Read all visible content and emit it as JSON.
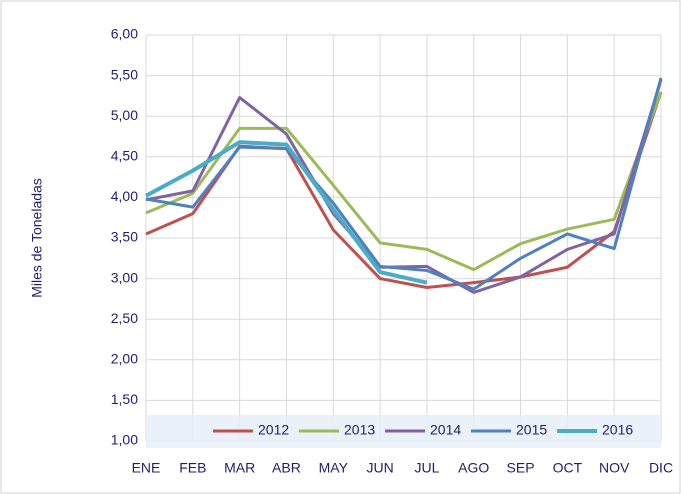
{
  "chart_data": {
    "type": "line",
    "y_label": "Miles de Toneladas",
    "categories": [
      "ENE",
      "FEB",
      "MAR",
      "ABR",
      "MAY",
      "JUN",
      "JUL",
      "AGO",
      "SEP",
      "OCT",
      "NOV",
      "DIC"
    ],
    "series": [
      {
        "name": "2012",
        "color": "#c0504d",
        "values": [
          3.55,
          3.8,
          4.63,
          4.6,
          3.6,
          3.0,
          2.89,
          2.95,
          3.02,
          3.14,
          3.58,
          5.3
        ]
      },
      {
        "name": "2013",
        "color": "#9bbb59",
        "values": [
          3.81,
          4.05,
          4.85,
          4.85,
          4.15,
          3.44,
          3.36,
          3.11,
          3.43,
          3.61,
          3.73,
          5.3
        ]
      },
      {
        "name": "2014",
        "color": "#8064a2",
        "values": [
          3.97,
          4.08,
          5.23,
          4.78,
          3.8,
          3.14,
          3.15,
          2.83,
          3.02,
          3.36,
          3.55,
          5.45
        ]
      },
      {
        "name": "2015",
        "color": "#4f81bd",
        "values": [
          3.98,
          3.88,
          4.62,
          4.6,
          3.93,
          3.15,
          3.1,
          2.87,
          3.25,
          3.55,
          3.37,
          5.47
        ]
      },
      {
        "name": "2016",
        "color": "#4bacc6",
        "values": [
          4.02,
          4.33,
          4.68,
          4.65,
          3.85,
          3.08,
          2.95,
          null,
          null,
          null,
          null,
          null
        ]
      }
    ],
    "ylim": [
      1,
      6
    ],
    "yticks": [
      {
        "value": 1,
        "label": "1,00"
      },
      {
        "value": 1.5,
        "label": "1,50"
      },
      {
        "value": 2,
        "label": "2,00"
      },
      {
        "value": 2.5,
        "label": "2,50"
      },
      {
        "value": 3,
        "label": "3,00"
      },
      {
        "value": 3.5,
        "label": "3,50"
      },
      {
        "value": 4,
        "label": "4,00"
      },
      {
        "value": 4.5,
        "label": "4,50"
      },
      {
        "value": 5,
        "label": "5,00"
      },
      {
        "value": 5.5,
        "label": "5,50"
      },
      {
        "value": 6,
        "label": "6,00"
      }
    ],
    "grid": true
  }
}
